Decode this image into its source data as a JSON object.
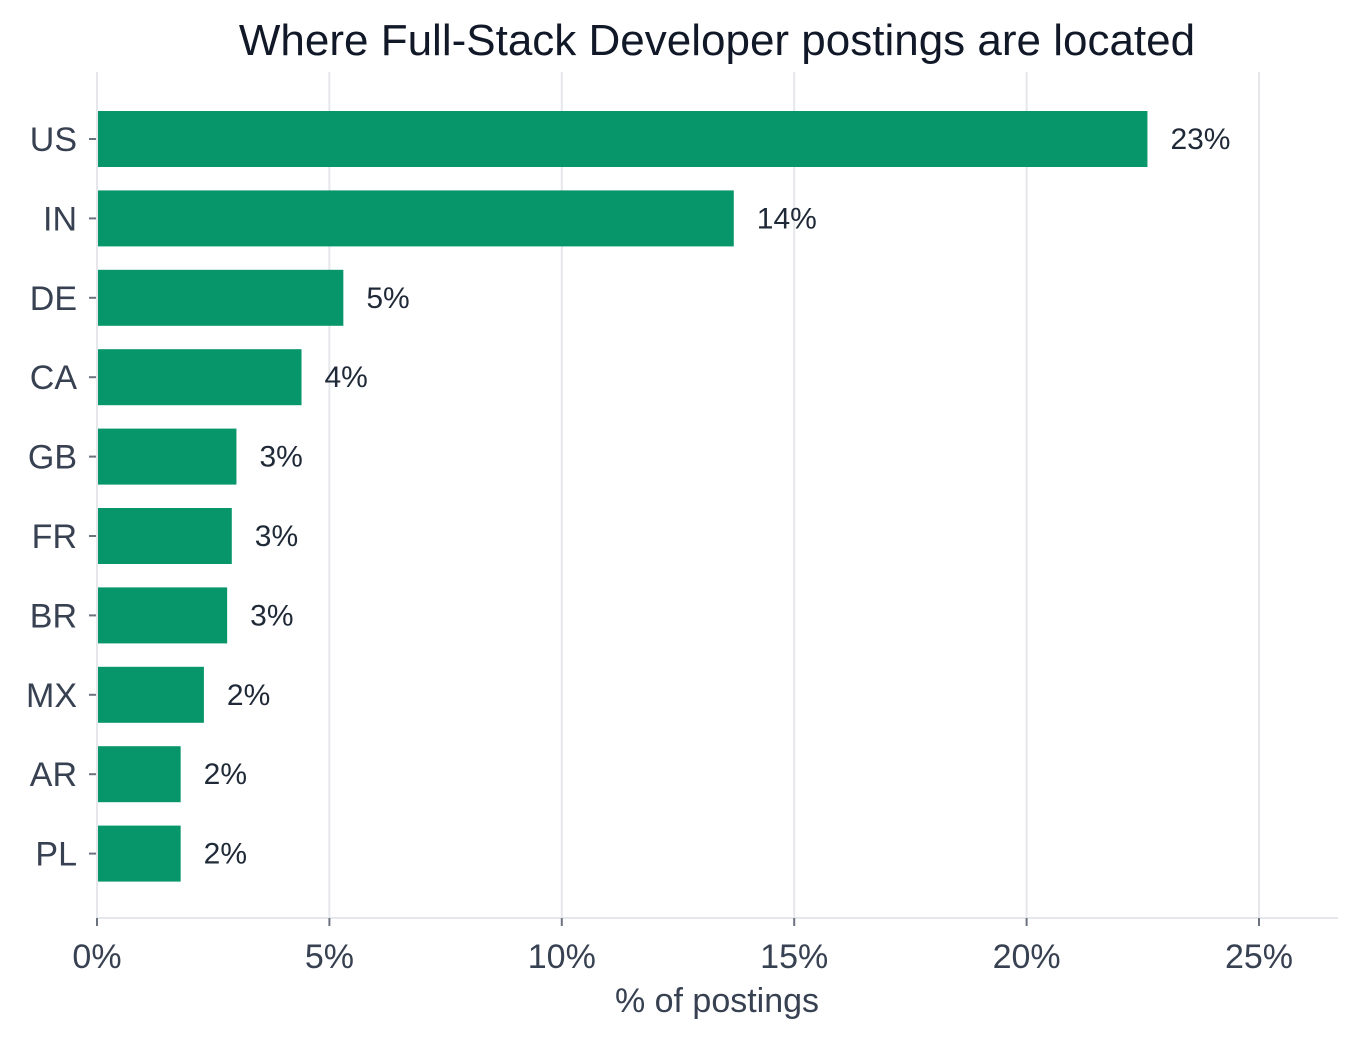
{
  "chart_data": {
    "type": "bar",
    "orientation": "horizontal",
    "title": "Where Full-Stack Developer postings are located",
    "xlabel": "% of postings",
    "ylabel": "",
    "categories": [
      "US",
      "IN",
      "DE",
      "CA",
      "GB",
      "FR",
      "BR",
      "MX",
      "AR",
      "PL"
    ],
    "values": [
      22.6,
      13.7,
      5.3,
      4.4,
      3.0,
      2.9,
      2.8,
      2.3,
      1.8,
      1.8
    ],
    "data_labels": [
      "23%",
      "14%",
      "5%",
      "4%",
      "3%",
      "3%",
      "3%",
      "2%",
      "2%",
      "2%"
    ],
    "xlim": [
      0,
      26.7
    ],
    "xticks": [
      0,
      5,
      10,
      15,
      20,
      25
    ],
    "xtick_labels": [
      "0%",
      "5%",
      "10%",
      "15%",
      "20%",
      "25%"
    ],
    "grid": "vertical",
    "colors": {
      "bar": "#079669",
      "grid": "#e5e7eb",
      "axis": "#e5e7eb"
    }
  }
}
